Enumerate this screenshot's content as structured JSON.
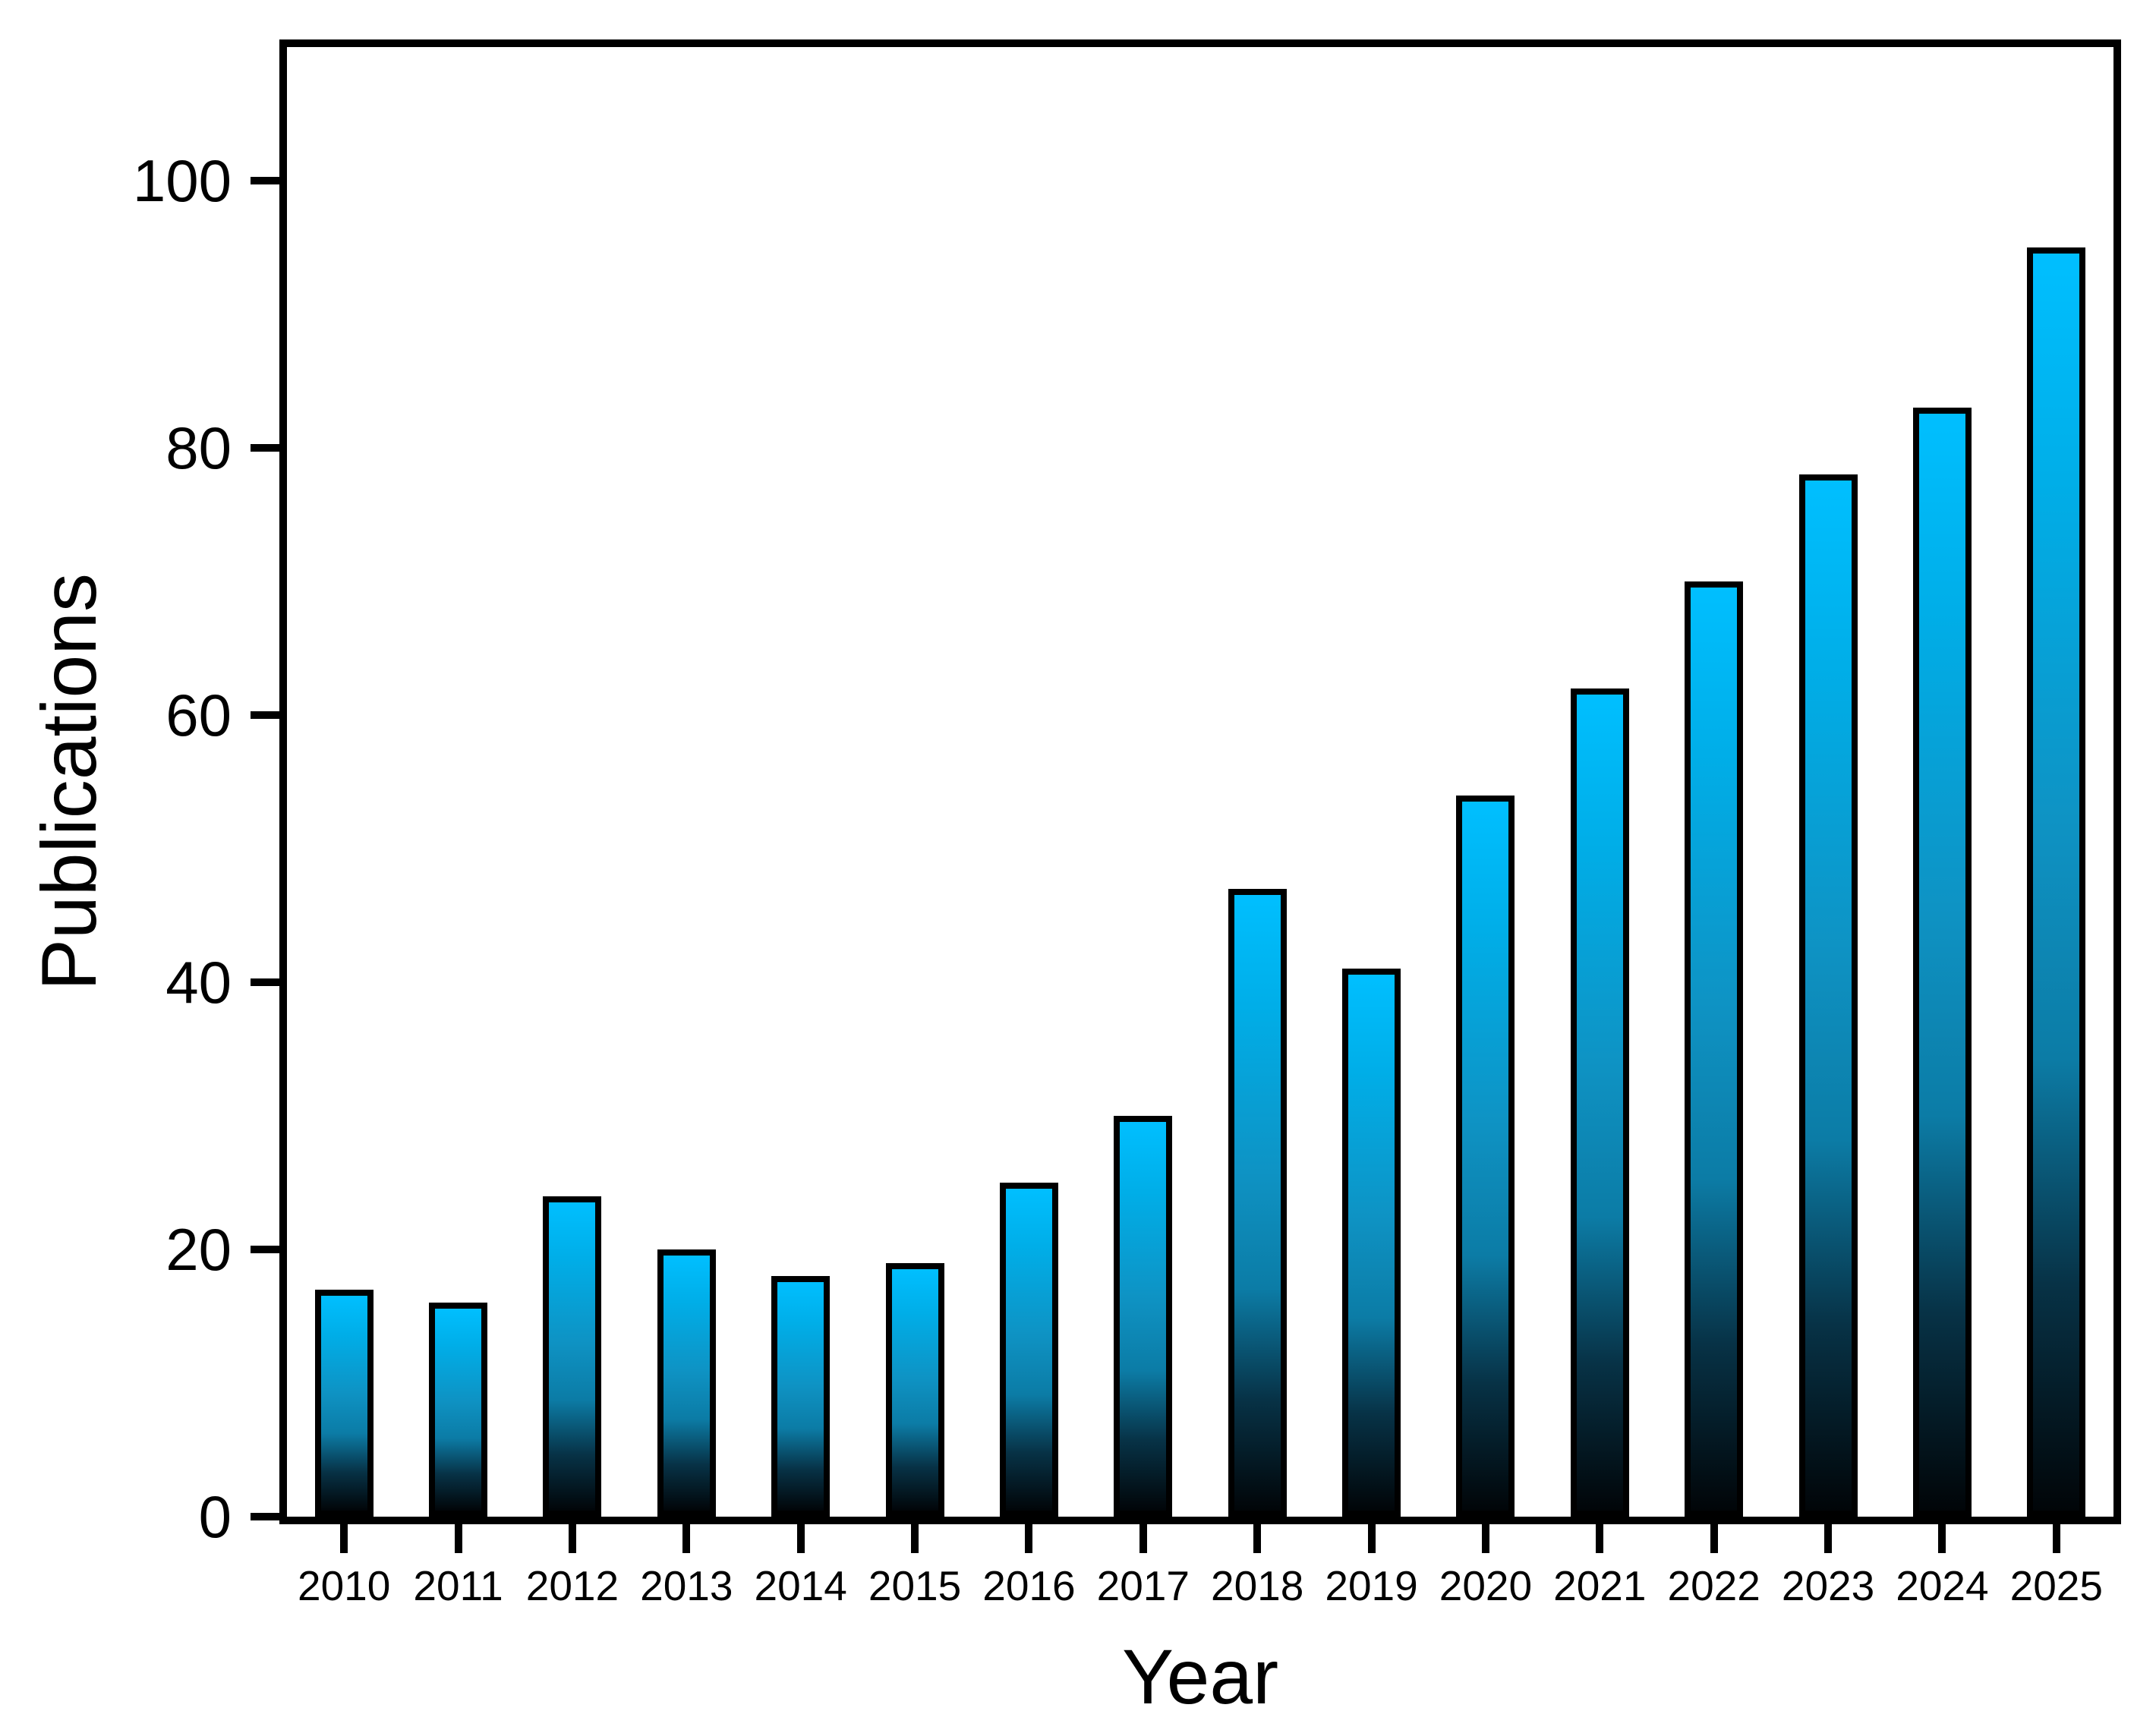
{
  "figure": {
    "background": "#ffffff",
    "frame_color": "#000000"
  },
  "chart_data": {
    "type": "bar",
    "title": "",
    "xlabel": "Year",
    "ylabel": "Publications",
    "categories": [
      "2010",
      "2011",
      "2012",
      "2013",
      "2014",
      "2015",
      "2016",
      "2017",
      "2018",
      "2019",
      "2020",
      "2021",
      "2022",
      "2023",
      "2024",
      "2025"
    ],
    "values": [
      17,
      16,
      24,
      20,
      18,
      19,
      25,
      30,
      47,
      41,
      54,
      62,
      70,
      78,
      83,
      95
    ],
    "ylim": [
      0,
      110
    ],
    "yticks": [
      0,
      20,
      40,
      60,
      80,
      100
    ],
    "grid": false,
    "legend": false,
    "frame": true,
    "bar_style": {
      "outline": "#000000",
      "gradient": [
        {
          "pos": "0%",
          "color": "#00BFFF"
        },
        {
          "pos": "18%",
          "color": "#00AEE8"
        },
        {
          "pos": "45%",
          "color": "#0E93C4"
        },
        {
          "pos": "64%",
          "color": "#0C7CA6"
        },
        {
          "pos": "82%",
          "color": "#073246"
        },
        {
          "pos": "100%",
          "color": "#010508"
        }
      ]
    }
  }
}
